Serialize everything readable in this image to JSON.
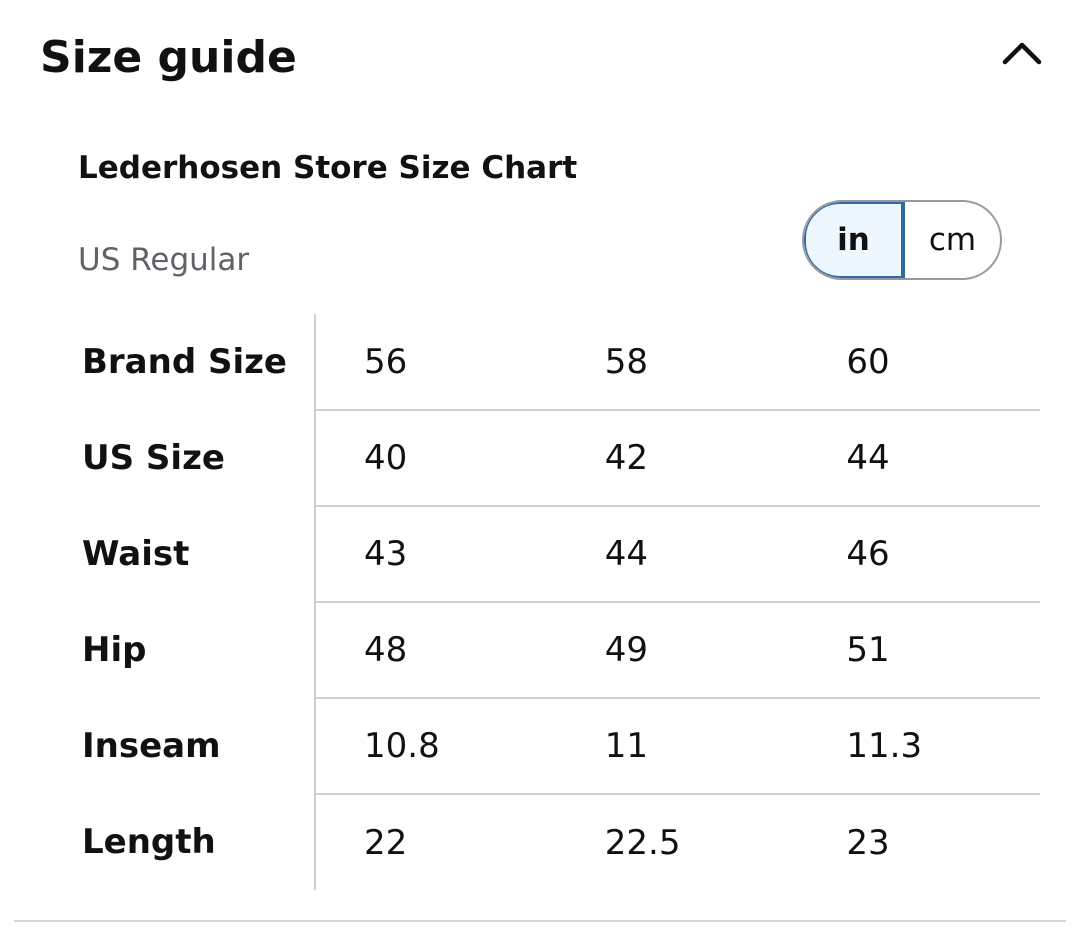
{
  "header": {
    "title": "Size guide",
    "collapse_icon": "chevron-up-icon"
  },
  "chart": {
    "name": "Lederhosen Store Size Chart",
    "fit": "US Regular"
  },
  "units": {
    "options": [
      "in",
      "cm"
    ],
    "selected": "in"
  },
  "table": {
    "rows": [
      {
        "label": "Brand Size",
        "values": [
          "56",
          "58",
          "60"
        ]
      },
      {
        "label": "US Size",
        "values": [
          "40",
          "42",
          "44"
        ]
      },
      {
        "label": "Waist",
        "values": [
          "43",
          "44",
          "46"
        ]
      },
      {
        "label": "Hip",
        "values": [
          "48",
          "49",
          "51"
        ]
      },
      {
        "label": "Inseam",
        "values": [
          "10.8",
          "11",
          "11.3"
        ]
      },
      {
        "label": "Length",
        "values": [
          "22",
          "22.5",
          "23"
        ]
      }
    ]
  },
  "colors": {
    "accent_border": "#2e6aa6",
    "accent_fill": "#edf7fd",
    "muted_text": "#5f6368",
    "divider": "#d0d0d0"
  }
}
